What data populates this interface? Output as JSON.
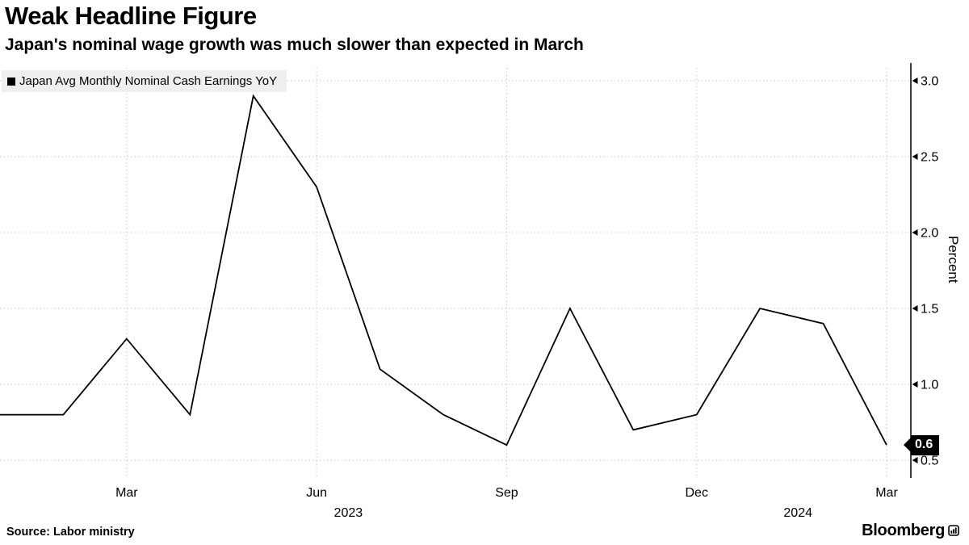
{
  "header": {
    "title": "Weak Headline Figure",
    "subtitle": "Japan's nominal wage growth was much slower than expected in March"
  },
  "legend": {
    "label": "Japan Avg Monthly Nominal Cash Earnings YoY"
  },
  "footer": {
    "source": "Source: Labor ministry",
    "brand": "Bloomberg"
  },
  "chart_data": {
    "type": "line",
    "title": "Weak Headline Figure",
    "subtitle": "Japan's nominal wage growth was much slower than expected in March",
    "series": [
      {
        "name": "Japan Avg Monthly Nominal Cash Earnings YoY",
        "values": [
          0.8,
          0.8,
          1.3,
          0.8,
          2.9,
          2.3,
          1.1,
          0.8,
          0.6,
          1.5,
          0.7,
          0.8,
          1.5,
          1.4,
          0.6
        ]
      }
    ],
    "x": [
      "Jan 2023",
      "Feb 2023",
      "Mar 2023",
      "Apr 2023",
      "May 2023",
      "Jun 2023",
      "Jul 2023",
      "Aug 2023",
      "Sep 2023",
      "Oct 2023",
      "Nov 2023",
      "Dec 2023",
      "Jan 2024",
      "Feb 2024",
      "Mar 2024"
    ],
    "xticks": [
      {
        "label": "Mar",
        "index": 2
      },
      {
        "label": "Jun",
        "index": 5
      },
      {
        "label": "Sep",
        "index": 8
      },
      {
        "label": "Dec",
        "index": 11
      },
      {
        "label": "Mar",
        "index": 14
      }
    ],
    "year_labels": [
      {
        "label": "2023",
        "index": 5.5
      },
      {
        "label": "2024",
        "index": 12.6
      }
    ],
    "yticks": [
      "0.5",
      "1.0",
      "1.5",
      "2.0",
      "2.5",
      "3.0"
    ],
    "ylim": [
      0.39,
      3.11
    ],
    "ylabel": "Percent",
    "xlabel": "",
    "last_value_label": "0.6",
    "line_color": "#000000",
    "grid_color": "#c9c9c9",
    "grid": "dotted",
    "legend_position": "top-left",
    "axis_side": "right"
  }
}
